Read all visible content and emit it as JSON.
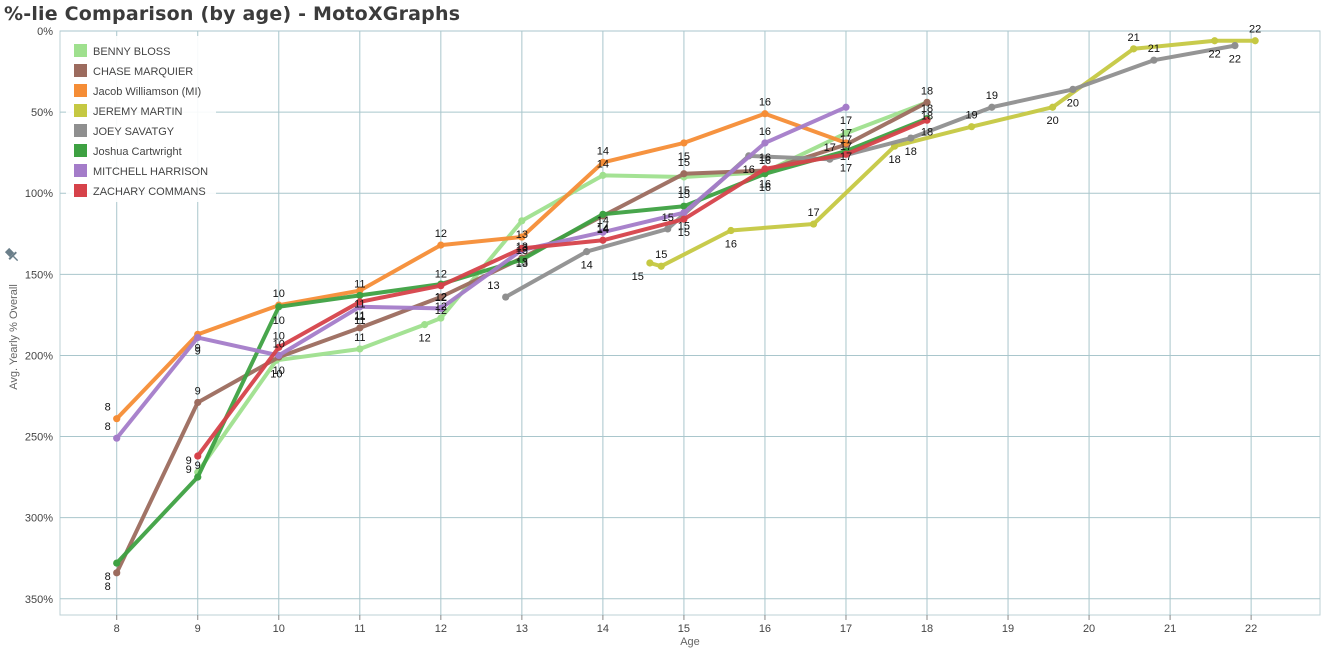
{
  "title": "%-lie Comparison (by age) - MotoXGraphs",
  "pin_icon": "pin-icon",
  "chart_data": {
    "type": "line",
    "title": "%-lie Comparison (by age) - MotoXGraphs",
    "xlabel": "Age",
    "ylabel": "Avg. Yearly % Overall",
    "y_reversed": true,
    "xlim": [
      7.3,
      22.85
    ],
    "ylim": [
      0,
      360
    ],
    "x_ticks": [
      8,
      9,
      10,
      11,
      12,
      13,
      14,
      15,
      16,
      17,
      18,
      19,
      20,
      21,
      22
    ],
    "y_ticks": [
      0,
      50,
      100,
      150,
      200,
      250,
      300,
      350
    ],
    "y_tick_labels": [
      "0%",
      "50%",
      "100%",
      "150%",
      "200%",
      "250%",
      "300%",
      "350%"
    ],
    "grid": true,
    "legend": "top-left",
    "series": [
      {
        "name": "BENNY BLOSS",
        "color": "#9fe08e",
        "points": [
          [
            9.0,
            272
          ],
          [
            9.97,
            203
          ],
          [
            11.0,
            196
          ],
          [
            11.8,
            181
          ],
          [
            12.0,
            177
          ],
          [
            13.0,
            117
          ],
          [
            14.0,
            89
          ],
          [
            15.0,
            90
          ],
          [
            16.0,
            87
          ],
          [
            17.0,
            63
          ],
          [
            18.0,
            44
          ]
        ],
        "labels": [
          "9",
          "10",
          "11",
          "12",
          "12",
          "13",
          "14",
          "15",
          "16",
          "17",
          "18"
        ]
      },
      {
        "name": "CHASE MARQUIER",
        "color": "#9c6b5e",
        "points": [
          [
            8.0,
            334
          ],
          [
            9.0,
            229
          ],
          [
            10.0,
            201
          ],
          [
            11.0,
            183
          ],
          [
            12.0,
            164
          ],
          [
            13.0,
            140
          ],
          [
            14.0,
            114
          ],
          [
            15.0,
            88
          ],
          [
            16.0,
            86
          ],
          [
            17.0,
            70
          ],
          [
            18.0,
            44
          ]
        ],
        "labels": [
          "8",
          "9",
          "10",
          "11",
          "12",
          "13",
          "14",
          "15",
          "16",
          "17",
          "18"
        ]
      },
      {
        "name": "Jacob Williamson (MI)",
        "color": "#f58d36",
        "points": [
          [
            8.0,
            239
          ],
          [
            9.0,
            187
          ],
          [
            10.0,
            169
          ],
          [
            11.0,
            160
          ],
          [
            12.0,
            132
          ],
          [
            13.0,
            127
          ],
          [
            14.0,
            81
          ],
          [
            15.0,
            69
          ],
          [
            16.0,
            51
          ],
          [
            17.0,
            69
          ]
        ],
        "labels": [
          "8",
          "9",
          "10",
          "11",
          "12",
          "13",
          "14",
          "15",
          "16",
          "17"
        ]
      },
      {
        "name": "JEREMY MARTIN",
        "color": "#c5c842",
        "points": [
          [
            14.58,
            143
          ],
          [
            14.72,
            145
          ],
          [
            15.58,
            123
          ],
          [
            16.6,
            119
          ],
          [
            17.6,
            71
          ],
          [
            18.55,
            59
          ],
          [
            19.55,
            47
          ],
          [
            20.55,
            11
          ],
          [
            21.55,
            6
          ],
          [
            22.05,
            6
          ]
        ],
        "labels": [
          "15",
          "15",
          "16",
          "17",
          "18",
          "19",
          "20",
          "21",
          "22",
          "22"
        ]
      },
      {
        "name": "JOEY SAVATGY",
        "color": "#8f8f8f",
        "points": [
          [
            12.8,
            164
          ],
          [
            13.8,
            136
          ],
          [
            14.8,
            122
          ],
          [
            15.8,
            77
          ],
          [
            16.8,
            79
          ],
          [
            17.8,
            66
          ],
          [
            18.8,
            47
          ],
          [
            19.8,
            36
          ],
          [
            20.8,
            18
          ],
          [
            21.8,
            9
          ]
        ],
        "labels": [
          "13",
          "14",
          "15",
          "16",
          "17",
          "18",
          "19",
          "20",
          "21",
          "22"
        ]
      },
      {
        "name": "Joshua Cartwright",
        "color": "#3ea142",
        "points": [
          [
            8.0,
            328
          ],
          [
            9.0,
            275
          ],
          [
            10.0,
            170
          ],
          [
            11.0,
            163
          ],
          [
            12.0,
            156
          ],
          [
            13.0,
            141
          ],
          [
            14.0,
            113
          ],
          [
            15.0,
            108
          ],
          [
            16.0,
            88
          ],
          [
            17.0,
            74
          ],
          [
            18.0,
            54
          ]
        ],
        "labels": [
          "8",
          "9",
          "10",
          "11",
          "12",
          "13",
          "14",
          "15",
          "16",
          "17",
          "18"
        ]
      },
      {
        "name": "MITCHELL HARRISON",
        "color": "#a47cc9",
        "points": [
          [
            8.0,
            251
          ],
          [
            9.0,
            189
          ],
          [
            10.0,
            200
          ],
          [
            11.0,
            170
          ],
          [
            12.0,
            171
          ],
          [
            13.0,
            135
          ],
          [
            14.0,
            124
          ],
          [
            15.0,
            112
          ],
          [
            16.0,
            69
          ],
          [
            17.0,
            47
          ]
        ],
        "labels": [
          "8",
          "9",
          "10",
          "11",
          "12",
          "13",
          "14",
          "15",
          "16",
          "17"
        ]
      },
      {
        "name": "ZACHARY COMMANS",
        "color": "#d6424a",
        "points": [
          [
            9.0,
            262
          ],
          [
            10.0,
            195
          ],
          [
            11.0,
            167
          ],
          [
            12.0,
            157
          ],
          [
            13.0,
            134
          ],
          [
            14.0,
            129
          ],
          [
            15.0,
            116
          ],
          [
            16.0,
            85
          ],
          [
            17.0,
            76
          ],
          [
            18.0,
            55
          ]
        ],
        "labels": [
          "9",
          "10",
          "11",
          "12",
          "13",
          "14",
          "15",
          "16",
          "17",
          "18"
        ]
      }
    ]
  }
}
